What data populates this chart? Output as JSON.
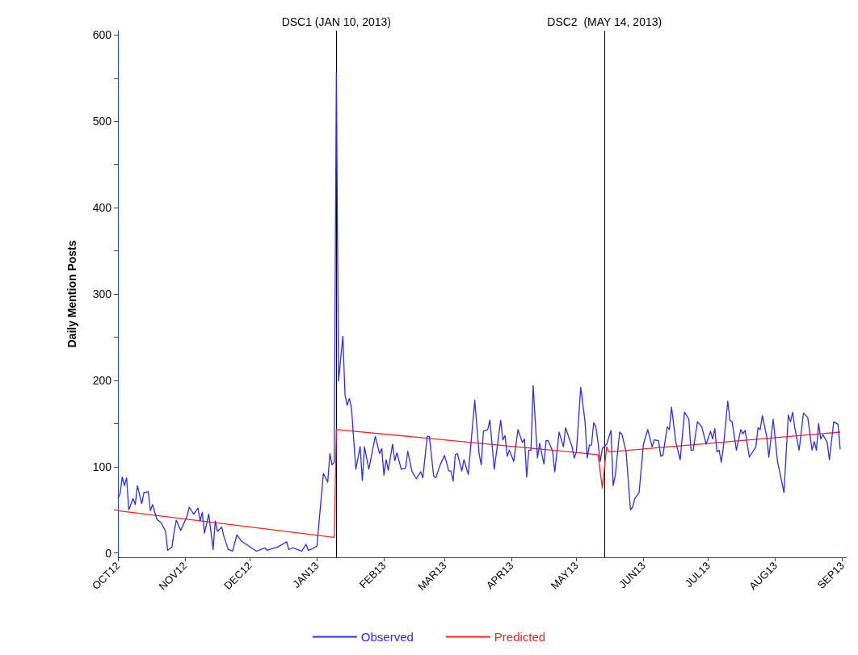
{
  "chart_data": {
    "type": "line",
    "ylabel": "Daily Mention Posts",
    "xlim": [
      "2012-10-01",
      "2013-09-03"
    ],
    "ylim": [
      -5,
      605
    ],
    "xticks": [
      {
        "value": "2012-10-01",
        "label": "OCT12"
      },
      {
        "value": "2012-11-01",
        "label": "NOV12"
      },
      {
        "value": "2012-12-01",
        "label": "DEC12"
      },
      {
        "value": "2013-01-01",
        "label": "JAN13"
      },
      {
        "value": "2013-02-01",
        "label": "FEB13"
      },
      {
        "value": "2013-03-01",
        "label": "MAR13"
      },
      {
        "value": "2013-04-01",
        "label": "APR13"
      },
      {
        "value": "2013-05-01",
        "label": "MAY13"
      },
      {
        "value": "2013-06-01",
        "label": "JUN13"
      },
      {
        "value": "2013-07-01",
        "label": "JUL13"
      },
      {
        "value": "2013-08-01",
        "label": "AUG13"
      },
      {
        "value": "2013-09-01",
        "label": "SEP13"
      }
    ],
    "yticks": [
      0,
      {
        "value": 50,
        "label": null
      },
      100,
      {
        "value": 150,
        "label": null
      },
      200,
      {
        "value": 250,
        "label": null
      },
      300,
      {
        "value": 350,
        "label": null
      },
      400,
      {
        "value": 450,
        "label": null
      },
      500,
      {
        "value": 550,
        "label": null
      },
      600
    ],
    "grid": false,
    "legend": "bottom",
    "marker": "none",
    "line_style": "solid",
    "ref_lines": [
      {
        "axis": "x",
        "value": "2013-01-10",
        "label": "DSC1 (JAN 10, 2013)",
        "color": "#000000"
      },
      {
        "axis": "x",
        "value": "2013-05-14",
        "label": "DSC2  (MAY 14, 2013)",
        "color": "#000000"
      }
    ],
    "series": [
      {
        "name": "Observed",
        "color": "#2b2bff",
        "x": [
          "2012-10-01",
          "2012-10-02",
          "2012-10-03",
          "2012-10-04",
          "2012-10-05",
          "2012-10-06",
          "2012-10-08",
          "2012-10-09",
          "2012-10-10",
          "2012-10-12",
          "2012-10-13",
          "2012-10-15",
          "2012-10-16",
          "2012-10-17",
          "2012-10-19",
          "2012-10-21",
          "2012-10-23",
          "2012-10-24",
          "2012-10-26",
          "2012-10-27",
          "2012-10-28",
          "2012-10-30",
          "2012-11-02",
          "2012-11-03",
          "2012-11-05",
          "2012-11-07",
          "2012-11-08",
          "2012-11-09",
          "2012-11-10",
          "2012-11-12",
          "2012-11-14",
          "2012-11-15",
          "2012-11-16",
          "2012-11-18",
          "2012-11-19",
          "2012-11-21",
          "2012-11-23",
          "2012-11-25",
          "2012-11-27",
          "2012-12-04",
          "2012-12-07",
          "2012-12-08",
          "2012-12-09",
          "2012-12-14",
          "2012-12-18",
          "2012-12-19",
          "2012-12-21",
          "2012-12-23",
          "2012-12-25",
          "2012-12-27",
          "2012-12-28",
          "2012-12-30",
          "2013-01-01",
          "2013-01-04",
          "2013-01-06",
          "2013-01-07",
          "2013-01-08",
          "2013-01-09",
          "2013-01-10",
          "2013-01-11",
          "2013-01-13",
          "2013-01-14",
          "2013-01-15",
          "2013-01-16",
          "2013-01-17",
          "2013-01-18",
          "2013-01-19",
          "2013-01-21",
          "2013-01-22",
          "2013-01-23",
          "2013-01-25",
          "2013-01-28",
          "2013-01-30",
          "2013-01-31",
          "2013-02-01",
          "2013-02-02",
          "2013-02-03",
          "2013-02-05",
          "2013-02-06",
          "2013-02-07",
          "2013-02-09",
          "2013-02-11",
          "2013-02-12",
          "2013-02-14",
          "2013-02-16",
          "2013-02-18",
          "2013-02-19",
          "2013-02-21",
          "2013-02-22",
          "2013-02-24",
          "2013-02-25",
          "2013-02-27",
          "2013-03-01",
          "2013-03-03",
          "2013-03-04",
          "2013-03-05",
          "2013-03-06",
          "2013-03-07",
          "2013-03-09",
          "2013-03-10",
          "2013-03-12",
          "2013-03-15",
          "2013-03-17",
          "2013-03-18",
          "2013-03-19",
          "2013-03-21",
          "2013-03-22",
          "2013-03-24",
          "2013-03-27",
          "2013-03-28",
          "2013-03-29",
          "2013-03-30",
          "2013-03-31",
          "2013-04-02",
          "2013-04-04",
          "2013-04-06",
          "2013-04-07",
          "2013-04-08",
          "2013-04-09",
          "2013-04-10",
          "2013-04-11",
          "2013-04-13",
          "2013-04-14",
          "2013-04-16",
          "2013-04-17",
          "2013-04-18",
          "2013-04-20",
          "2013-04-21",
          "2013-04-23",
          "2013-04-25",
          "2013-04-26",
          "2013-04-29",
          "2013-04-30",
          "2013-05-01",
          "2013-05-03",
          "2013-05-05",
          "2013-05-06",
          "2013-05-07",
          "2013-05-08",
          "2013-05-09",
          "2013-05-10",
          "2013-05-11",
          "2013-05-12",
          "2013-05-13",
          "2013-05-15",
          "2013-05-17",
          "2013-05-18",
          "2013-05-19",
          "2013-05-21",
          "2013-05-22",
          "2013-05-24",
          "2013-05-26",
          "2013-05-27",
          "2013-05-28",
          "2013-05-30",
          "2013-06-01",
          "2013-06-03",
          "2013-06-05",
          "2013-06-06",
          "2013-06-08",
          "2013-06-09",
          "2013-06-10",
          "2013-06-12",
          "2013-06-13",
          "2013-06-14",
          "2013-06-16",
          "2013-06-18",
          "2013-06-20",
          "2013-06-22",
          "2013-06-23",
          "2013-06-24",
          "2013-06-26",
          "2013-06-28",
          "2013-06-30",
          "2013-07-02",
          "2013-07-03",
          "2013-07-04",
          "2013-07-05",
          "2013-07-06",
          "2013-07-07",
          "2013-07-08",
          "2013-07-10",
          "2013-07-11",
          "2013-07-12",
          "2013-07-14",
          "2013-07-16",
          "2013-07-17",
          "2013-07-18",
          "2013-07-20",
          "2013-07-23",
          "2013-07-24",
          "2013-07-25",
          "2013-07-26",
          "2013-07-28",
          "2013-07-29",
          "2013-07-31",
          "2013-08-02",
          "2013-08-05",
          "2013-08-07",
          "2013-08-08",
          "2013-08-09",
          "2013-08-10",
          "2013-08-12",
          "2013-08-14",
          "2013-08-16",
          "2013-08-18",
          "2013-08-19",
          "2013-08-20",
          "2013-08-21",
          "2013-08-22",
          "2013-08-23",
          "2013-08-25",
          "2013-08-26",
          "2013-08-28",
          "2013-08-30",
          "2013-08-31"
        ],
        "values": [
          63,
          69,
          88,
          78,
          87,
          50,
          63,
          56,
          78,
          57,
          70,
          71,
          49,
          56,
          39,
          35,
          25,
          3,
          7,
          25,
          38,
          26,
          43,
          53,
          45,
          52,
          37,
          47,
          23,
          45,
          4,
          37,
          25,
          30,
          19,
          4,
          2,
          21,
          14,
          2,
          5,
          6,
          3,
          7,
          13,
          4,
          6,
          4,
          2,
          10,
          3,
          5,
          8,
          92,
          82,
          115,
          102,
          105,
          556,
          199,
          251,
          183,
          171,
          179,
          168,
          132,
          97,
          123,
          84,
          123,
          97,
          135,
          115,
          121,
          90,
          108,
          96,
          126,
          107,
          116,
          97,
          98,
          118,
          94,
          86,
          94,
          87,
          135,
          135,
          89,
          87,
          102,
          113,
          95,
          95,
          83,
          114,
          115,
          95,
          108,
          91,
          177,
          115,
          102,
          141,
          143,
          154,
          97,
          154,
          131,
          136,
          112,
          119,
          106,
          143,
          128,
          132,
          88,
          119,
          119,
          194,
          110,
          127,
          103,
          130,
          130,
          118,
          94,
          140,
          123,
          145,
          123,
          110,
          117,
          192,
          152,
          110,
          125,
          125,
          151,
          146,
          128,
          106,
          121,
          126,
          142,
          78,
          90,
          140,
          138,
          117,
          50,
          53,
          63,
          70,
          126,
          143,
          123,
          131,
          130,
          112,
          113,
          146,
          143,
          169,
          128,
          108,
          163,
          155,
          119,
          119,
          152,
          146,
          126,
          141,
          132,
          144,
          117,
          119,
          105,
          123,
          176,
          154,
          152,
          119,
          143,
          138,
          142,
          111,
          123,
          145,
          143,
          159,
          135,
          111,
          155,
          106,
          70,
          160,
          152,
          163,
          145,
          119,
          162,
          157,
          119,
          129,
          119,
          150,
          132,
          137,
          128,
          108,
          152,
          149,
          120
        ]
      },
      {
        "name": "Predicted",
        "color": "#ff2020",
        "x": [
          "2012-10-01",
          "2013-01-09",
          "2013-01-10",
          "2013-05-11",
          "2013-05-13",
          "2013-05-15",
          "2013-05-16",
          "2013-08-31"
        ],
        "values": [
          49,
          18,
          143,
          114,
          75,
          123,
          117,
          140
        ]
      }
    ]
  }
}
